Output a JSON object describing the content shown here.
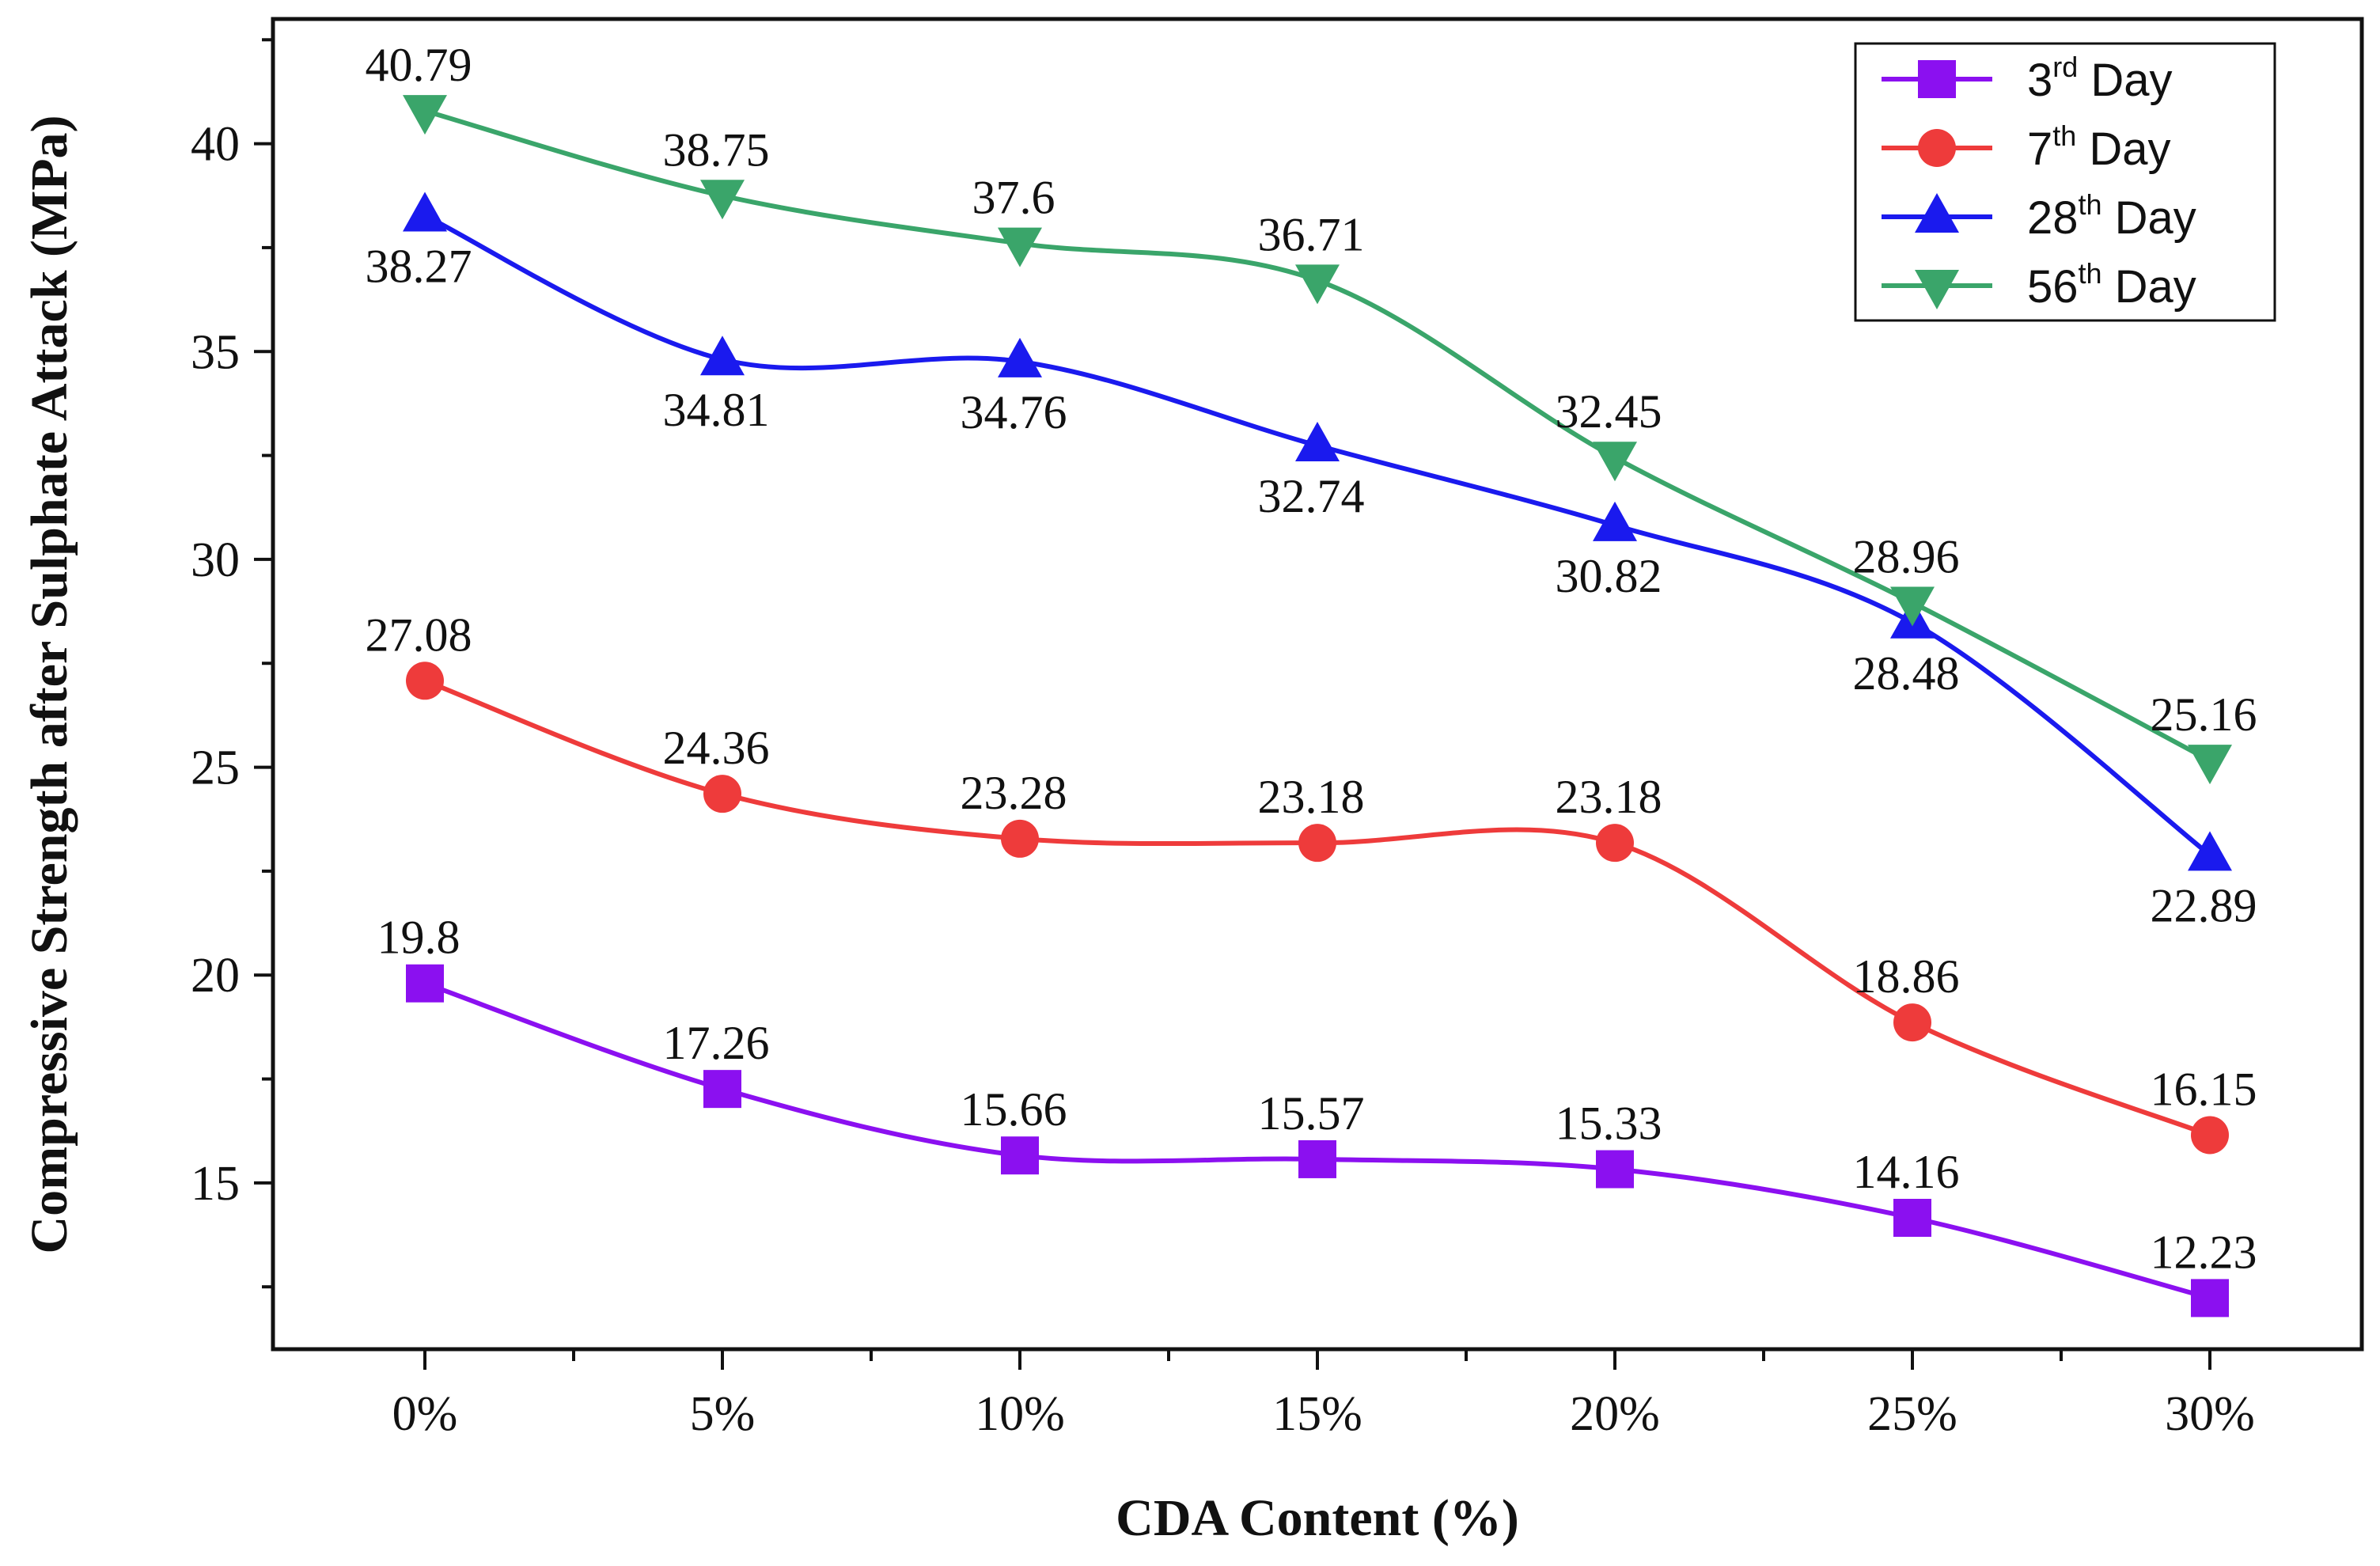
{
  "chart_data": {
    "type": "line",
    "title": "",
    "xlabel": "CDA Content (%)",
    "ylabel": "Compressive Strength after Sulphate Attack (MPa)",
    "categories": [
      "0%",
      "5%",
      "10%",
      "15%",
      "20%",
      "25%",
      "30%"
    ],
    "ylim": [
      11,
      43
    ],
    "yticks": [
      15,
      20,
      25,
      30,
      35,
      40
    ],
    "grid": false,
    "legend_position": "top-right",
    "series": [
      {
        "name": "3rd Day",
        "legend_base": "3",
        "legend_sup": "rd",
        "legend_rest": " Day",
        "color": "#8b10f0",
        "marker": "square",
        "values": [
          19.8,
          17.26,
          15.66,
          15.57,
          15.33,
          14.16,
          12.23
        ],
        "labels": [
          "19.8",
          "17.26",
          "15.66",
          "15.57",
          "15.33",
          "14.16",
          "12.23"
        ],
        "label_side": [
          "above",
          "above",
          "above",
          "above",
          "above",
          "above",
          "above"
        ]
      },
      {
        "name": "7th Day",
        "legend_base": "7",
        "legend_sup": "th",
        "legend_rest": " Day",
        "color": "#ee3b3b",
        "marker": "circle",
        "values": [
          27.08,
          24.36,
          23.28,
          23.18,
          23.18,
          18.86,
          16.15
        ],
        "labels": [
          "27.08",
          "24.36",
          "23.28",
          "23.18",
          "23.18",
          "18.86",
          "16.15"
        ],
        "label_side": [
          "above",
          "above",
          "above",
          "above",
          "above",
          "above",
          "above"
        ]
      },
      {
        "name": "28th Day",
        "legend_base": "28",
        "legend_sup": "th",
        "legend_rest": " Day",
        "color": "#1a1aee",
        "marker": "triangle-up",
        "values": [
          38.27,
          34.81,
          34.76,
          32.74,
          30.82,
          28.48,
          22.89
        ],
        "labels": [
          "38.27",
          "34.81",
          "34.76",
          "32.74",
          "30.82",
          "28.48",
          "22.89"
        ],
        "label_side": [
          "below",
          "below",
          "below",
          "below",
          "below",
          "below",
          "below"
        ]
      },
      {
        "name": "56th Day",
        "legend_base": "56",
        "legend_sup": "th",
        "legend_rest": " Day",
        "color": "#3aa56a",
        "marker": "triangle-down",
        "values": [
          40.79,
          38.75,
          37.6,
          36.71,
          32.45,
          28.96,
          25.16
        ],
        "labels": [
          "40.79",
          "38.75",
          "37.6",
          "36.71",
          "32.45",
          "28.96",
          "25.16"
        ],
        "label_side": [
          "above",
          "above",
          "above",
          "above",
          "above",
          "above",
          "above"
        ]
      }
    ]
  }
}
